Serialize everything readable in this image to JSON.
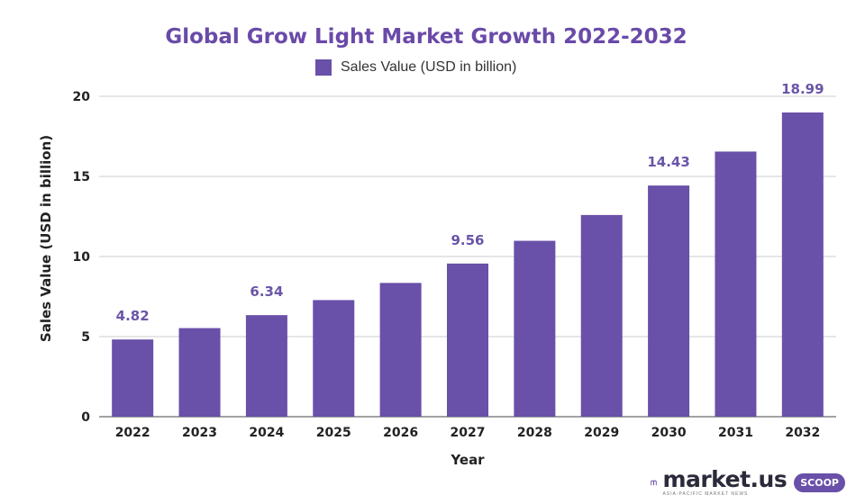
{
  "chart_data": {
    "type": "bar",
    "title": "Global Grow Light Market Growth 2022-2032",
    "xlabel": "Year",
    "ylabel": "Sales Value (USD in billion)",
    "categories": [
      "2022",
      "2023",
      "2024",
      "2025",
      "2026",
      "2027",
      "2028",
      "2029",
      "2030",
      "2031",
      "2032"
    ],
    "series": [
      {
        "name": "Sales Value (USD in billion)",
        "values": [
          4.82,
          5.53,
          6.34,
          7.28,
          8.35,
          9.56,
          10.98,
          12.59,
          14.43,
          16.55,
          18.99
        ],
        "color": "#6950a8"
      }
    ],
    "data_labels": [
      {
        "index": 0,
        "text": "4.82"
      },
      {
        "index": 2,
        "text": "6.34"
      },
      {
        "index": 5,
        "text": "9.56"
      },
      {
        "index": 8,
        "text": "14.43"
      },
      {
        "index": 10,
        "text": "18.99"
      }
    ],
    "y_ticks": [
      0,
      5,
      10,
      15,
      20
    ],
    "ylim": [
      0,
      20
    ],
    "grid": true,
    "legend_position": "top"
  },
  "logo": {
    "text": "market.us",
    "subtext": "ASIA-PACIFIC MARKET NEWS",
    "badge": "SCOOP"
  }
}
